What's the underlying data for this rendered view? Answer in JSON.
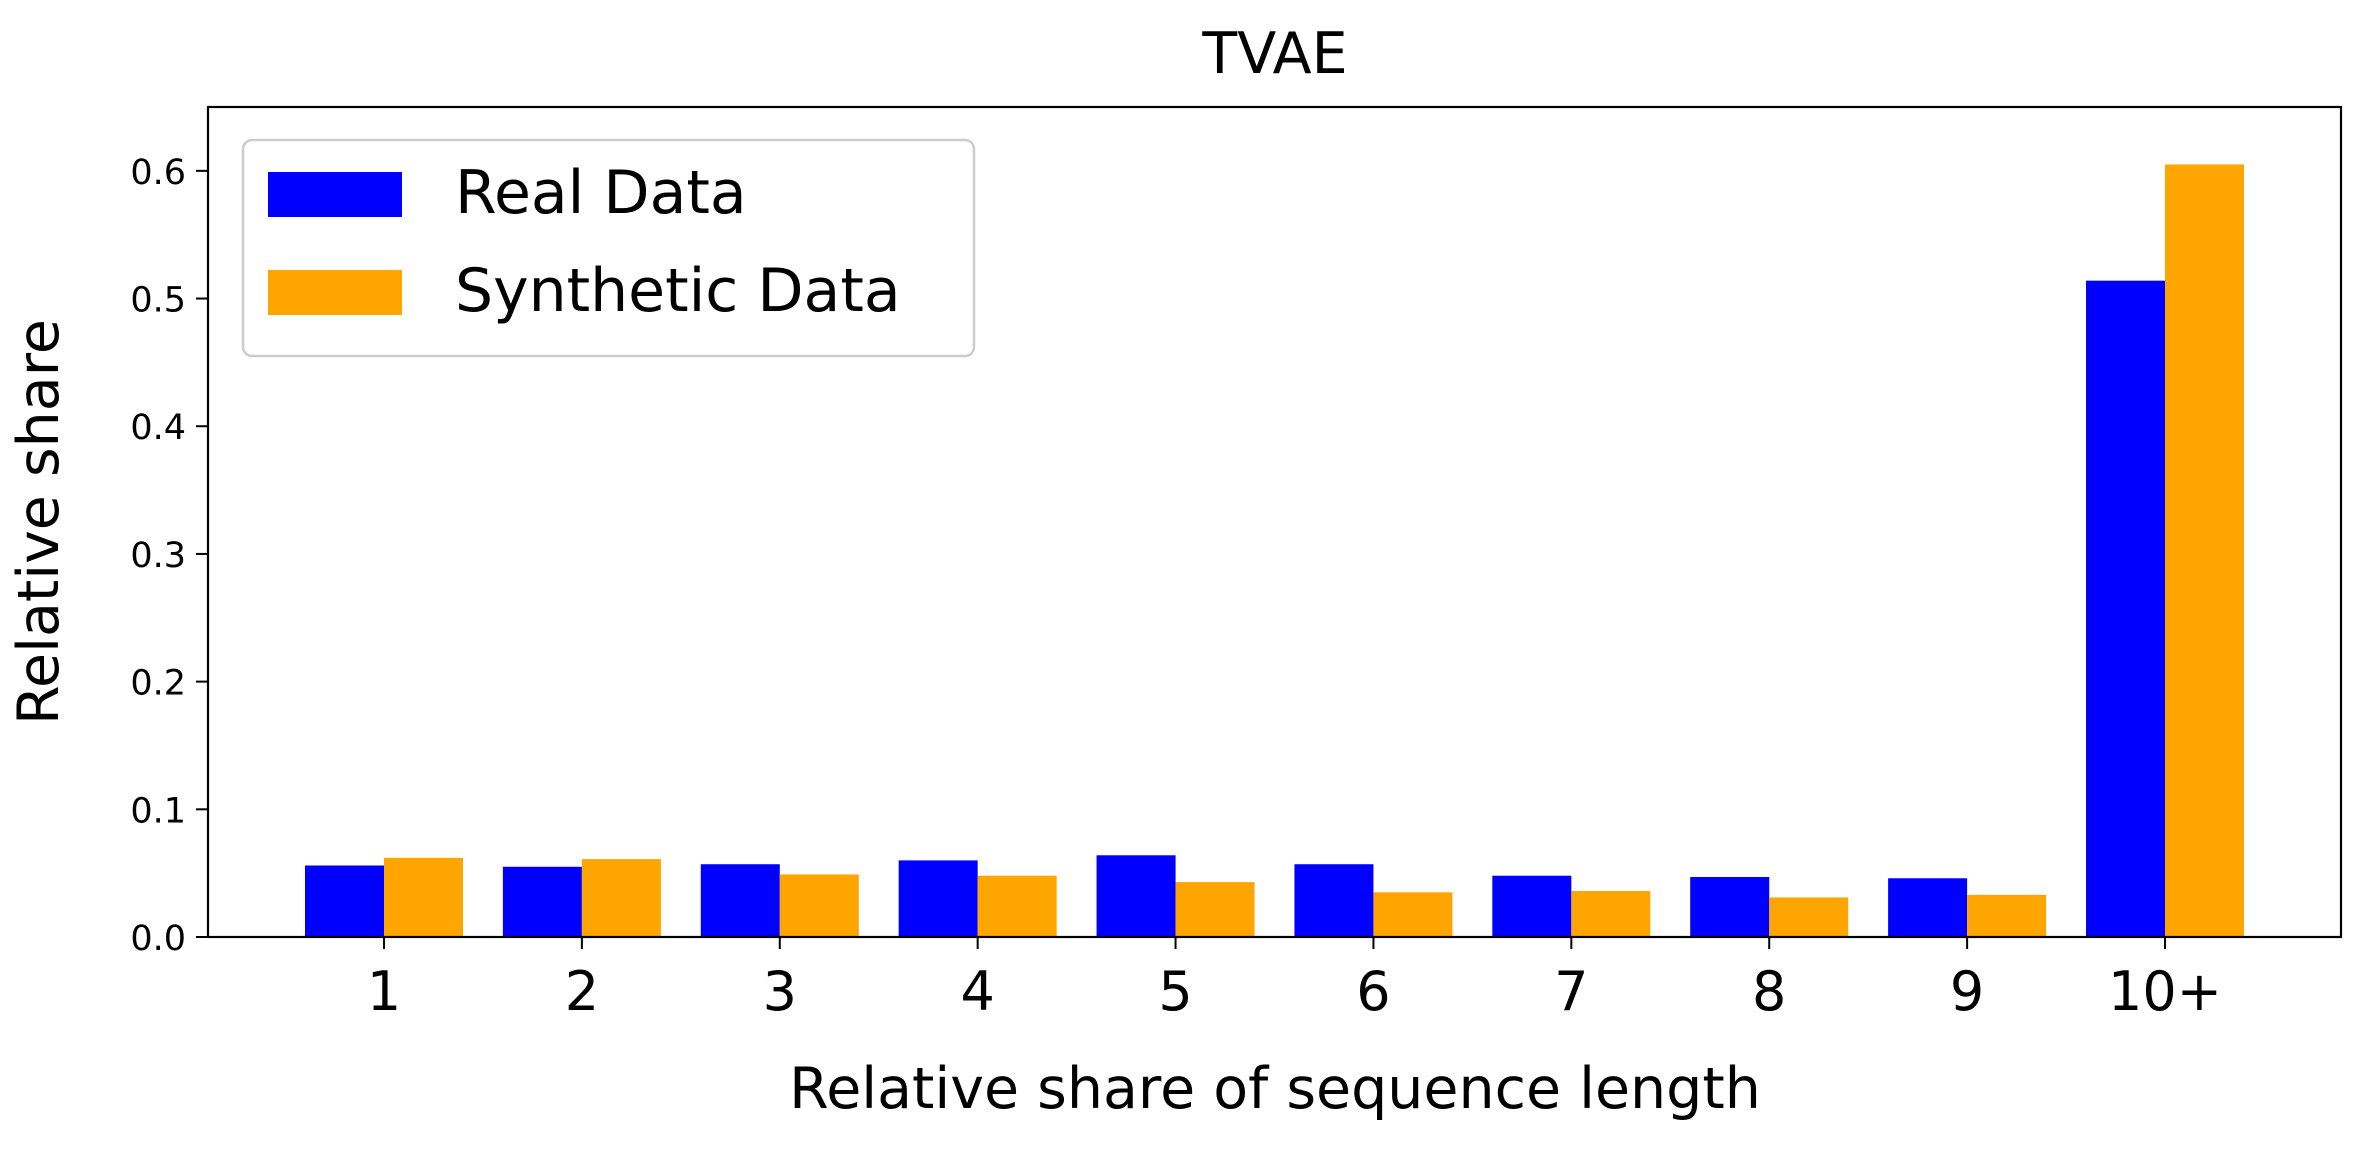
{
  "chart_data": {
    "type": "bar",
    "title": "TVAE",
    "xlabel": "Relative share of sequence length",
    "ylabel": "Relative share",
    "categories": [
      "1",
      "2",
      "3",
      "4",
      "5",
      "6",
      "7",
      "8",
      "9",
      "10+"
    ],
    "series": [
      {
        "name": "Real Data",
        "color": "#0000ff",
        "values": [
          0.056,
          0.055,
          0.057,
          0.06,
          0.064,
          0.057,
          0.048,
          0.047,
          0.046,
          0.514
        ]
      },
      {
        "name": "Synthetic Data",
        "color": "#ffa500",
        "values": [
          0.062,
          0.061,
          0.049,
          0.048,
          0.043,
          0.035,
          0.036,
          0.031,
          0.033,
          0.605
        ]
      }
    ],
    "ylim": [
      0,
      0.65
    ],
    "yticks": [
      0.0,
      0.1,
      0.2,
      0.3,
      0.4,
      0.5,
      0.6
    ],
    "ytick_labels": [
      "0.0",
      "0.1",
      "0.2",
      "0.3",
      "0.4",
      "0.5",
      "0.6"
    ],
    "grid": false,
    "legend_position": "top-left"
  }
}
